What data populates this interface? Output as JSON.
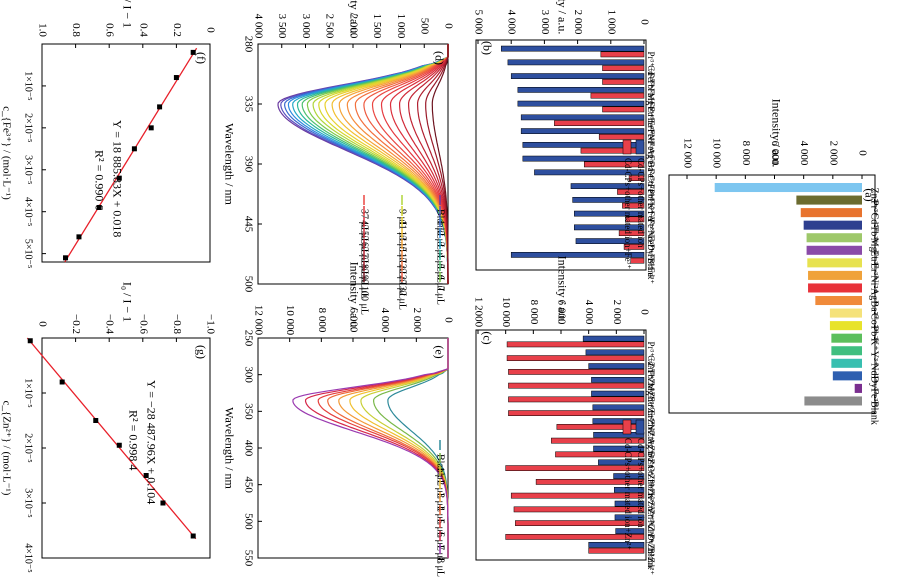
{
  "chart_data": [
    {
      "panel": "(a)",
      "type": "bar",
      "title": "",
      "ylabel": "Intensity / a.u.",
      "ylim": [
        0,
        12000
      ],
      "yticks": [
        "0",
        "2 000",
        "4 000",
        "6 000",
        "8 000",
        "10 000",
        "12 000"
      ],
      "categories": [
        "Zn²⁺",
        "Pr³⁺",
        "Cd²⁺",
        "Tb³⁺",
        "Mg²⁺",
        "Eu³⁺",
        "Er³⁺",
        "Ni²⁺",
        "Ag⁺",
        "Ba²⁺",
        "Co²⁺",
        "Pb²⁺",
        "K⁺",
        "Y³⁺",
        "Nd³⁺",
        "Dy³⁺",
        "Fe³⁺",
        "Blank"
      ],
      "values": [
        10100,
        4500,
        4200,
        4000,
        3800,
        3800,
        3750,
        3700,
        3700,
        3200,
        2200,
        2200,
        2100,
        2100,
        2100,
        2000,
        500,
        3950
      ],
      "colors": [
        "#7dc6f0",
        "#6b6b2f",
        "#e8732e",
        "#2e3f8f",
        "#9ec86a",
        "#8a4aa8",
        "#e7e24f",
        "#f0a23a",
        "#e8323a",
        "#f08a3a",
        "#f5e27a",
        "#e8e32a",
        "#5cbf5c",
        "#3fbf80",
        "#38bfb0",
        "#2e5fb0",
        "#7a2e8f",
        "#8c8c8c"
      ]
    },
    {
      "panel": "(b)",
      "type": "bar",
      "title": "",
      "ylabel": "Intensity / a.u.",
      "ylim": [
        0,
        5000
      ],
      "yticks": [
        "0",
        "1 000",
        "2 000",
        "3 000",
        "4 000",
        "5 000"
      ],
      "categories": [
        "Pr³⁺+Fe³⁺",
        "Cd²⁺+Fe³⁺",
        "Tb³⁺+Fe³⁺",
        "Mg²⁺+Fe³⁺",
        "Eu³⁺+Fe³⁺",
        "Er³⁺+Fe³⁺",
        "Ni²⁺+Fe³⁺",
        "Ag⁺+Fe³⁺",
        "Ba²⁺+Fe³⁺",
        "Co²⁺+Fe³⁺",
        "Pb²⁺+Fe³⁺",
        "K⁺+Fe³⁺",
        "Y³⁺+Fe³⁺",
        "Nd³⁺+Fe³⁺",
        "Dy³⁺+Fe³⁺",
        "Blank"
      ],
      "series": [
        {
          "name": "Cd-CPs+other mated ion",
          "color": "#2e4f9f",
          "values": [
            4300,
            4100,
            4000,
            3800,
            3800,
            3700,
            3700,
            3650,
            3650,
            3300,
            2200,
            2150,
            2100,
            2100,
            2050,
            4000
          ]
        },
        {
          "name": "Cd-CPs+other mated ion+Fe³⁺",
          "color": "#e8404a",
          "values": [
            1300,
            1250,
            1250,
            1600,
            1250,
            2700,
            1350,
            1900,
            1800,
            450,
            800,
            650,
            550,
            750,
            600,
            400
          ]
        }
      ]
    },
    {
      "panel": "(c)",
      "type": "bar",
      "title": "",
      "ylabel": "Intensity / a.u.",
      "ylim": [
        0,
        12000
      ],
      "yticks": [
        "0",
        "2 000",
        "4 000",
        "6 000",
        "8 000",
        "10 000",
        "1 2000"
      ],
      "categories": [
        "Pr³⁺+Zn²⁺",
        "Cd²⁺+Zn²⁺",
        "Tb³⁺+Zn²⁺",
        "Mg²⁺+Zn²⁺",
        "Eu³⁺+Zn²⁺",
        "Er³⁺+Zn²⁺",
        "Ni²⁺+Zn²⁺",
        "Ag⁺+Zn²⁺",
        "Ba²⁺+Zn²⁺",
        "Co²⁺+Zn²⁺",
        "Pb²⁺+Zn²⁺",
        "K⁺+Zn²⁺",
        "Y³⁺+Zn²⁺",
        "Nd³⁺+Zn²⁺",
        "Dy³⁺+Zn²⁺",
        "Blank"
      ],
      "series": [
        {
          "name": "Cd-CPs+other mated ion",
          "color": "#2e4f9f",
          "values": [
            4400,
            4200,
            4000,
            3800,
            3800,
            3700,
            3700,
            3650,
            3650,
            3300,
            2200,
            2150,
            2100,
            2100,
            2050,
            4000
          ]
        },
        {
          "name": "Cd-CPs+other mated ion+Zn²⁺",
          "color": "#e8404a",
          "values": [
            9900,
            9900,
            9800,
            9800,
            9800,
            9800,
            6300,
            6700,
            6400,
            10000,
            7800,
            9600,
            9400,
            9300,
            10000,
            4000
          ]
        }
      ]
    },
    {
      "panel": "(d)",
      "type": "line",
      "title": "",
      "xlabel": "Wavelength / nm",
      "ylabel": "Intensity / a.u.",
      "xlim": [
        280,
        500
      ],
      "ylim": [
        0,
        4000
      ],
      "xticks": [
        "280",
        "335",
        "390",
        "445",
        "500"
      ],
      "yticks": [
        "0",
        "500",
        "1 000",
        "1 500",
        "2 000",
        "2 500",
        "3 000",
        "3 500",
        "4 000"
      ],
      "peak_x": 335,
      "series": [
        {
          "name": "Blank",
          "color": "#6a3aa0",
          "peak": 3580
        },
        {
          "name": "1 μL",
          "color": "#5a50c0",
          "peak": 3520
        },
        {
          "name": "2 μL",
          "color": "#3a6ad0",
          "peak": 3440
        },
        {
          "name": "3 μL",
          "color": "#2f8ae0",
          "peak": 3360
        },
        {
          "name": "4 μL",
          "color": "#25a8c8",
          "peak": 3270
        },
        {
          "name": "5 μL",
          "color": "#2ab89a",
          "peak": 3170
        },
        {
          "name": "6 μL",
          "color": "#4cc070",
          "peak": 3070
        },
        {
          "name": "7 μL",
          "color": "#7ecb4a",
          "peak": 2960
        },
        {
          "name": "9 μL",
          "color": "#b0d63a",
          "peak": 2840
        },
        {
          "name": "11 μL",
          "color": "#d6d82e",
          "peak": 2720
        },
        {
          "name": "13 μL",
          "color": "#e8d030",
          "peak": 2590
        },
        {
          "name": "15 μL",
          "color": "#f2c032",
          "peak": 2440
        },
        {
          "name": "17 μL",
          "color": "#f5a53a",
          "peak": 2290
        },
        {
          "name": "22 μL",
          "color": "#f58b3c",
          "peak": 2120
        },
        {
          "name": "27 μL",
          "color": "#f2703e",
          "peak": 1950
        },
        {
          "name": "32 μL",
          "color": "#ee5a40",
          "peak": 1770
        },
        {
          "name": "37 μL",
          "color": "#ea4742",
          "peak": 1590
        },
        {
          "name": "42 μL",
          "color": "#e53a40",
          "peak": 1400
        },
        {
          "name": "52 μL",
          "color": "#dc2f3c",
          "peak": 1210
        },
        {
          "name": "62 μL",
          "color": "#d02a38",
          "peak": 1020
        },
        {
          "name": "72 μL",
          "color": "#c22434",
          "peak": 830
        },
        {
          "name": "82 μL",
          "color": "#b01f30",
          "peak": 640
        },
        {
          "name": "92 μL",
          "color": "#9a1a2a",
          "peak": 470
        },
        {
          "name": "100 μL",
          "color": "#6e1420",
          "peak": 330
        }
      ]
    },
    {
      "panel": "(e)",
      "type": "line",
      "title": "",
      "xlabel": "Wavelength / nm",
      "ylabel": "Intensity / a.u.",
      "xlim": [
        250,
        550
      ],
      "ylim": [
        0,
        12000
      ],
      "xticks": [
        "250",
        "300",
        "350",
        "400",
        "450",
        "500",
        "550"
      ],
      "yticks": [
        "0",
        "2 000",
        "4 000",
        "6 000",
        "8 000",
        "10 000",
        "12 000"
      ],
      "peak_x": 335,
      "series": [
        {
          "name": "Blank",
          "color": "#2e8a9a",
          "peak": 3800
        },
        {
          "name": "1 μL",
          "color": "#7ab84a",
          "peak": 4700
        },
        {
          "name": "2 μL",
          "color": "#c8cf36",
          "peak": 5500
        },
        {
          "name": "3 μL",
          "color": "#f0c030",
          "peak": 6200
        },
        {
          "name": "4 μL",
          "color": "#f29a36",
          "peak": 6900
        },
        {
          "name": "5 μL",
          "color": "#ee6a3a",
          "peak": 7600
        },
        {
          "name": "6 μL",
          "color": "#e5403c",
          "peak": 8200
        },
        {
          "name": "7 μL",
          "color": "#d6284a",
          "peak": 9000
        },
        {
          "name": "8 μL",
          "color": "#9a3ab0",
          "peak": 9800
        }
      ]
    },
    {
      "panel": "(f)",
      "type": "scatter",
      "title": "",
      "xlabel": "c_{Fe³⁺} / (mol·L⁻¹)",
      "ylabel": "I₀ / I − 1",
      "xlim": [
        0,
        5.2e-05
      ],
      "ylim": [
        0,
        1.0
      ],
      "xticks": [
        "1×10⁻⁵",
        "2×10⁻⁵",
        "3×10⁻⁵",
        "4×10⁻⁵",
        "5×10⁻⁵"
      ],
      "yticks": [
        "0",
        "0.2",
        "0.4",
        "0.6",
        "0.8",
        "1.0"
      ],
      "x": [
        2e-06,
        8e-06,
        1.5e-05,
        2e-05,
        2.5e-05,
        3.2e-05,
        3.9e-05,
        4.6e-05,
        5.1e-05
      ],
      "y": [
        0.1,
        0.2,
        0.3,
        0.35,
        0.45,
        0.54,
        0.66,
        0.78,
        0.86
      ],
      "equation": "Y = 18 885.83X + 0.018",
      "r2": "R² = 0.990 6",
      "fit_x": [
        1e-06,
        5.2e-05
      ]
    },
    {
      "panel": "(g)",
      "type": "scatter",
      "title": "",
      "xlabel": "c_{Zn²⁺} / (mol·L⁻¹)",
      "ylabel": "I₀ / I − 1",
      "xlim": [
        0,
        4e-05
      ],
      "ylim": [
        -1.0,
        0
      ],
      "xticks": [
        "1×10⁻⁵",
        "2×10⁻⁵",
        "3×10⁻⁵",
        "4×10⁻⁵"
      ],
      "yticks": [
        "−1.0",
        "−0.8",
        "−0.6",
        "−0.4",
        "−0.2",
        "0"
      ],
      "x": [
        5e-07,
        8e-06,
        1.5e-05,
        1.95e-05,
        2.5e-05,
        3e-05,
        3.6e-05
      ],
      "y": [
        0.07,
        -0.12,
        -0.32,
        -0.46,
        -0.62,
        -0.72,
        -0.9
      ],
      "equation": "Y = −28 487.96X + 0.104",
      "r2": "R² = 0.998 4",
      "fit_x": [
        0.0,
        3.65e-05
      ]
    }
  ]
}
